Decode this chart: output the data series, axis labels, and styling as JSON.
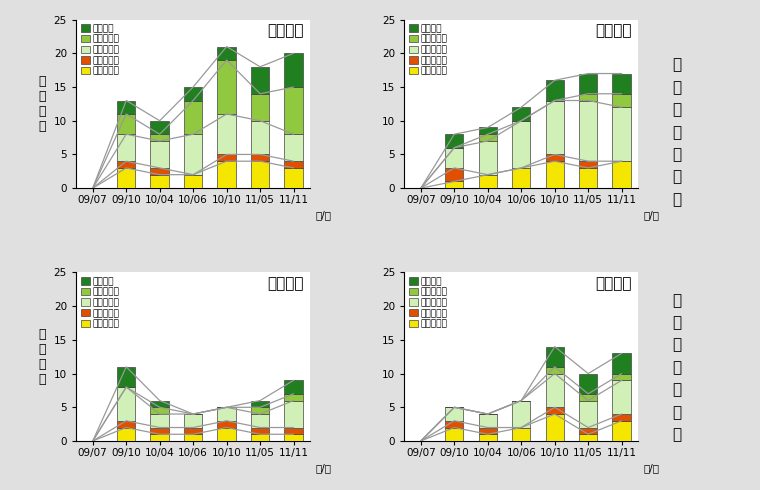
{
  "categories": [
    "09/07",
    "09/10",
    "10/04",
    "10/06",
    "10/10",
    "11/05",
    "11/11"
  ],
  "ylabel_chars": [
    "出",
    "現",
    "種",
    "数"
  ],
  "ylim": [
    0,
    25
  ],
  "yticks": [
    0,
    5,
    10,
    15,
    20,
    25
  ],
  "colors": {
    "外来一年草": "#f5e600",
    "外来多年草": "#e05000",
    "在来一年草": "#d0f0b8",
    "在来多年草": "#90c840",
    "在来木本": "#208020"
  },
  "stack_order": [
    "外来一年草",
    "外来多年草",
    "在来一年草",
    "在来多年草",
    "在来木本"
  ],
  "legend_order": [
    "在来木本",
    "在来多年草",
    "在来一年草",
    "外来多年草",
    "外来一年草"
  ],
  "plots": [
    {
      "title": "試験区１",
      "data": {
        "在来木本": [
          0,
          2,
          2,
          2,
          2,
          4,
          5
        ],
        "在来多年草": [
          0,
          3,
          1,
          5,
          8,
          4,
          7
        ],
        "在来一年草": [
          0,
          4,
          4,
          6,
          6,
          5,
          4
        ],
        "外来多年草": [
          0,
          1,
          1,
          0,
          1,
          1,
          1
        ],
        "外来一年草": [
          0,
          3,
          2,
          2,
          4,
          4,
          3
        ]
      }
    },
    {
      "title": "試験区２",
      "data": {
        "在来木本": [
          0,
          2,
          1,
          2,
          3,
          3,
          3
        ],
        "在来多年草": [
          0,
          0,
          1,
          0,
          0,
          1,
          2
        ],
        "在来一年草": [
          0,
          3,
          5,
          7,
          8,
          9,
          8
        ],
        "外来多年草": [
          0,
          2,
          0,
          0,
          1,
          1,
          0
        ],
        "外来一年草": [
          0,
          1,
          2,
          3,
          4,
          3,
          4
        ]
      }
    },
    {
      "title": "試験区３",
      "data": {
        "在来木本": [
          0,
          3,
          1,
          0,
          0,
          1,
          2
        ],
        "在来多年草": [
          0,
          0,
          1,
          0,
          0,
          1,
          1
        ],
        "在来一年草": [
          0,
          5,
          2,
          2,
          2,
          2,
          4
        ],
        "外来多年草": [
          0,
          1,
          1,
          1,
          1,
          1,
          1
        ],
        "外来一年草": [
          0,
          2,
          1,
          1,
          2,
          1,
          1
        ]
      }
    },
    {
      "title": "試験区４",
      "data": {
        "在来木本": [
          0,
          0,
          0,
          0,
          3,
          3,
          3
        ],
        "在来多年草": [
          0,
          0,
          0,
          0,
          1,
          1,
          1
        ],
        "在来一年草": [
          0,
          2,
          2,
          4,
          5,
          4,
          5
        ],
        "外来多年草": [
          0,
          1,
          1,
          0,
          1,
          1,
          1
        ],
        "外来一年草": [
          0,
          2,
          1,
          2,
          4,
          1,
          3
        ]
      }
    }
  ],
  "right_label_top": "ストッパーあり",
  "right_label_bottom": "ストッパーなし",
  "line_color": "#999999",
  "bar_edge_color": "#444444",
  "background_color": "#e0e0e0"
}
